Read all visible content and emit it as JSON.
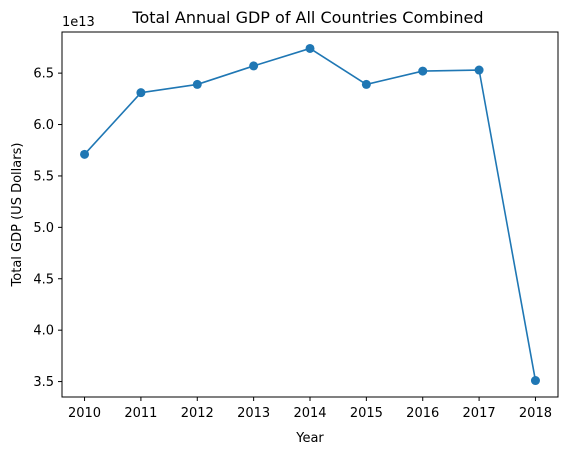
{
  "chart_data": {
    "type": "line",
    "title": "Total Annual GDP of All Countries Combined",
    "xlabel": "Year",
    "ylabel": "Total GDP (US Dollars)",
    "y_offset_label": "1e13",
    "x": [
      2010,
      2011,
      2012,
      2013,
      2014,
      2015,
      2016,
      2017,
      2018
    ],
    "x_tick_labels": [
      "2010",
      "2011",
      "2012",
      "2013",
      "2014",
      "2015",
      "2016",
      "2017",
      "2018"
    ],
    "series": [
      {
        "values": [
          57100000000000.0,
          63100000000000.0,
          63900000000000.0,
          65700000000000.0,
          67400000000000.0,
          63900000000000.0,
          65200000000000.0,
          65300000000000.0,
          35100000000000.0
        ],
        "color": "#1f77b4",
        "marker": "circle"
      }
    ],
    "y_ticks": [
      3.5,
      4.0,
      4.5,
      5.0,
      5.5,
      6.0,
      6.5
    ],
    "y_tick_labels": [
      "3.5",
      "4.0",
      "4.5",
      "5.0",
      "5.5",
      "6.0",
      "6.5"
    ],
    "ylim": [
      33500000000000.0,
      69000000000000.0
    ],
    "xlim": [
      2009.6,
      2018.4
    ],
    "grid": false,
    "legend": "none"
  }
}
